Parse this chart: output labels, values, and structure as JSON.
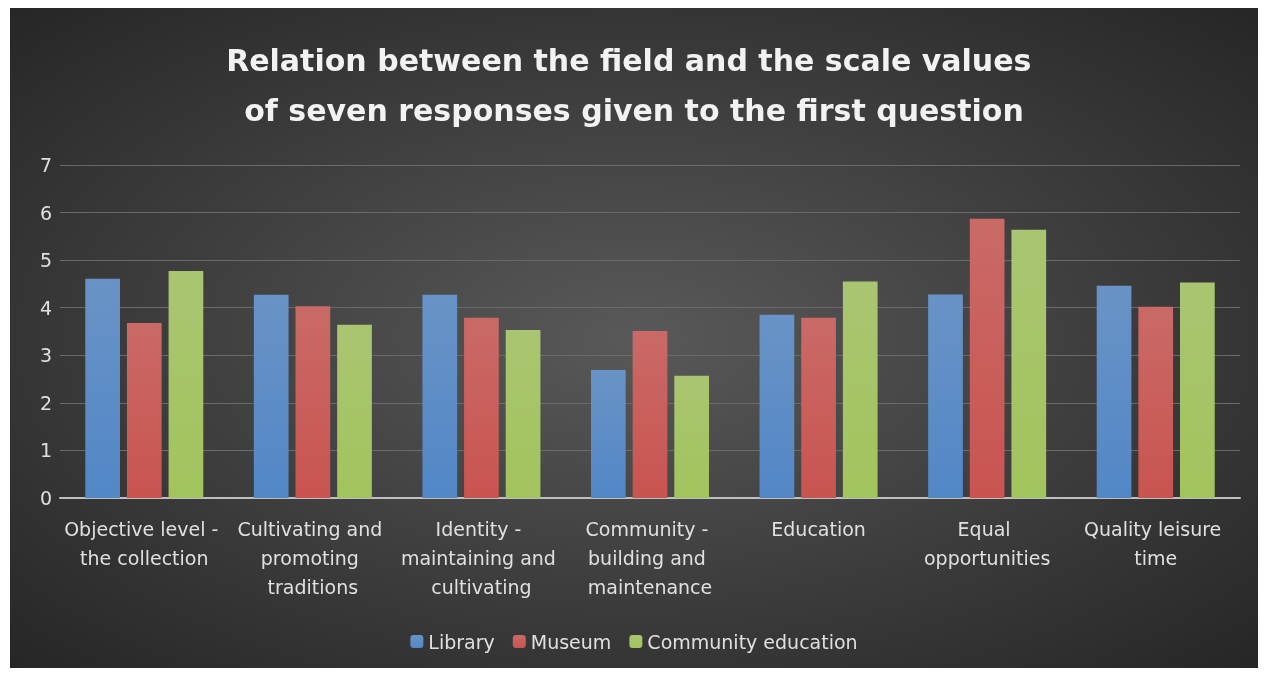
{
  "chart_data": {
    "type": "bar",
    "title": "Relation between the field and the scale values of seven responses given to the first question",
    "categories": [
      "Objective level - the collection",
      "Cultivating and promoting traditions",
      "Identity - maintaining and cultivating",
      "Community - building and maintenance",
      "Education",
      "Equal opportunities",
      "Quality leisure time"
    ],
    "series": [
      {
        "name": "Library",
        "color": "#4f81bd",
        "values": [
          4.61,
          4.27,
          4.27,
          2.69,
          3.85,
          4.28,
          4.46
        ]
      },
      {
        "name": "Museum",
        "color": "#c0504d",
        "values": [
          3.68,
          4.03,
          3.79,
          3.51,
          3.79,
          5.87,
          4.02
        ]
      },
      {
        "name": "Community education",
        "color": "#9bbb59",
        "values": [
          4.77,
          3.64,
          3.53,
          2.57,
          4.55,
          5.64,
          4.53
        ]
      }
    ],
    "ylim": [
      0,
      7
    ],
    "yticks": [
      0,
      1,
      2,
      3,
      4,
      5,
      6,
      7
    ],
    "grid": "y",
    "legend": "bottom"
  }
}
